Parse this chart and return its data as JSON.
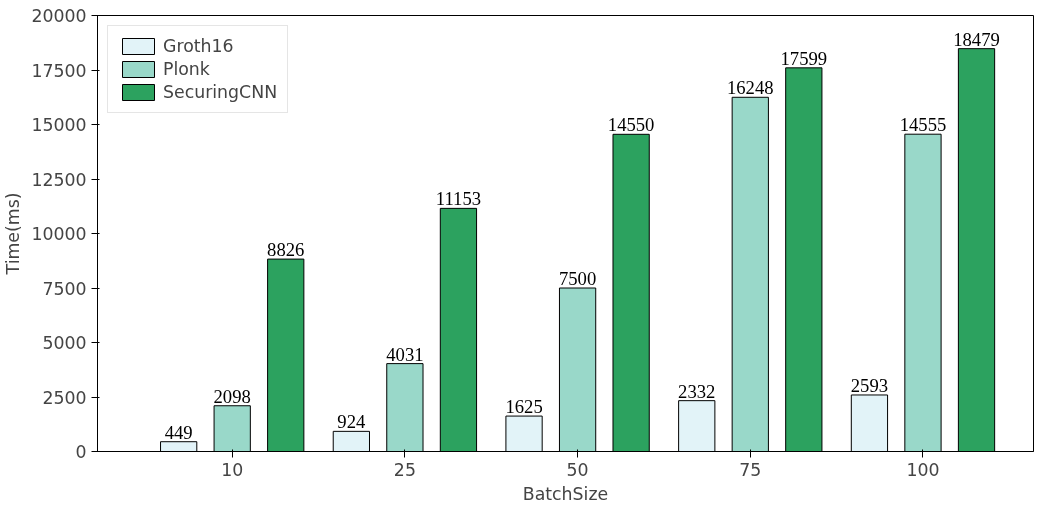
{
  "chart_data": {
    "type": "bar",
    "xlabel": "BatchSize",
    "ylabel": "Time(ms)",
    "categories": [
      "10",
      "25",
      "50",
      "75",
      "100"
    ],
    "series": [
      {
        "name": "Groth16",
        "color": "#e2f3f8",
        "values": [
          449,
          924,
          1625,
          2332,
          2593
        ]
      },
      {
        "name": "Plonk",
        "color": "#99d8c9",
        "values": [
          2098,
          4031,
          7500,
          16248,
          14555
        ]
      },
      {
        "name": "SecuringCNN",
        "color": "#2ca25f",
        "values": [
          8826,
          11153,
          14550,
          17599,
          18479
        ]
      }
    ],
    "ylim": [
      0,
      20000
    ],
    "yticks": [
      0,
      2500,
      5000,
      7500,
      10000,
      12500,
      15000,
      17500,
      20000
    ],
    "data_labels": true,
    "legend": "top left",
    "grid": false
  }
}
